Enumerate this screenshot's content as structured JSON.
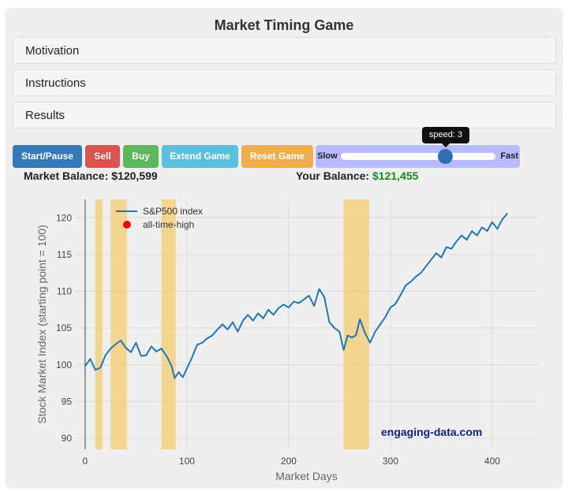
{
  "app": {
    "title": "Market Timing Game"
  },
  "accordion": [
    {
      "label": "Motivation"
    },
    {
      "label": "Instructions"
    },
    {
      "label": "Results"
    }
  ],
  "controls": {
    "start_pause": "Start/Pause",
    "sell": "Sell",
    "buy": "Buy",
    "extend": "Extend Game",
    "reset": "Reset Game",
    "colors": {
      "start": "#337ab7",
      "sell": "#d9534f",
      "buy": "#5cb85c",
      "extend": "#5bc0de",
      "reset": "#f0ad4e",
      "slider_bg": "#b9b9ff"
    }
  },
  "speed": {
    "slow_label": "Slow",
    "fast_label": "Fast",
    "tooltip": "speed: 3",
    "value": 3
  },
  "balances": {
    "market_label": "Market Balance:",
    "market_value": "$120,599",
    "your_label": "Your Balance:",
    "your_value": "$121,455"
  },
  "chart_data": {
    "type": "line",
    "xlabel": "Market Days",
    "ylabel": "Stock Market Index (starting point = 100)",
    "xlim": [
      -10,
      445
    ],
    "ylim": [
      88.5,
      122.5
    ],
    "xticks": [
      0,
      100,
      200,
      300,
      400
    ],
    "yticks": [
      90,
      95,
      100,
      105,
      110,
      115,
      120
    ],
    "grid": true,
    "legend_position": "top-left",
    "legend": [
      "S&P500 index",
      "all-time-high"
    ],
    "series": [
      {
        "name": "S&P500 index",
        "color": "#1f77b4",
        "x": [
          0,
          5,
          10,
          15,
          20,
          25,
          30,
          35,
          40,
          45,
          50,
          55,
          60,
          65,
          70,
          75,
          80,
          85,
          88,
          92,
          96,
          100,
          105,
          110,
          115,
          120,
          125,
          130,
          135,
          140,
          145,
          150,
          155,
          160,
          165,
          170,
          175,
          180,
          185,
          190,
          195,
          200,
          205,
          210,
          215,
          220,
          225,
          230,
          235,
          240,
          245,
          250,
          254,
          258,
          262,
          266,
          270,
          275,
          280,
          285,
          290,
          295,
          300,
          305,
          310,
          315,
          320,
          325,
          330,
          335,
          340,
          345,
          350,
          355,
          360,
          365,
          370,
          375,
          380,
          385,
          390,
          395,
          400,
          405,
          410,
          415
        ],
        "y": [
          99.8,
          100.8,
          99.3,
          99.6,
          101.3,
          102.2,
          102.8,
          103.3,
          102.3,
          101.7,
          103.0,
          101.2,
          101.3,
          102.5,
          101.8,
          102.2,
          101.2,
          99.8,
          98.2,
          99.0,
          98.3,
          99.5,
          101.0,
          102.7,
          103.0,
          103.6,
          104.0,
          104.8,
          105.5,
          104.8,
          105.8,
          104.5,
          106.0,
          106.8,
          106.0,
          107.0,
          106.3,
          107.5,
          106.8,
          107.7,
          108.2,
          107.8,
          108.6,
          108.4,
          108.9,
          109.4,
          108.0,
          110.3,
          109.2,
          105.8,
          105.0,
          104.5,
          102.0,
          104.0,
          103.7,
          104.0,
          106.2,
          104.3,
          103.0,
          104.5,
          105.5,
          106.5,
          107.8,
          108.3,
          109.5,
          110.8,
          111.3,
          112.0,
          112.5,
          113.4,
          114.3,
          115.2,
          114.6,
          116.0,
          115.8,
          116.8,
          117.6,
          117.0,
          118.2,
          117.6,
          118.7,
          118.2,
          119.4,
          118.5,
          119.8,
          120.6
        ]
      }
    ],
    "out_of_market_periods": [
      [
        10,
        17
      ],
      [
        25,
        41
      ],
      [
        75,
        89
      ],
      [
        254,
        279
      ]
    ],
    "watermark": "engaging-data.com"
  }
}
